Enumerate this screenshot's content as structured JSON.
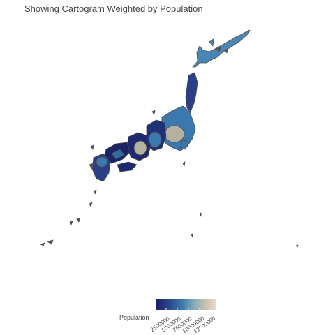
{
  "map": {
    "title": "Showing Cartogram Weighted by Population"
  },
  "legend": {
    "title": "Population",
    "ticks": [
      "2500000",
      "5000000",
      "7500000",
      "10000000",
      "12500000"
    ],
    "colors": [
      "#1b1f6b",
      "#2b4f8f",
      "#3f7fb0",
      "#8fb0b8",
      "#c9c0ae",
      "#f6d9c8"
    ]
  },
  "colors": {
    "outline": "#4d4d4d",
    "low": "#1e2a6e",
    "mid": "#2f6ea5",
    "high": "#b4b29e"
  }
}
